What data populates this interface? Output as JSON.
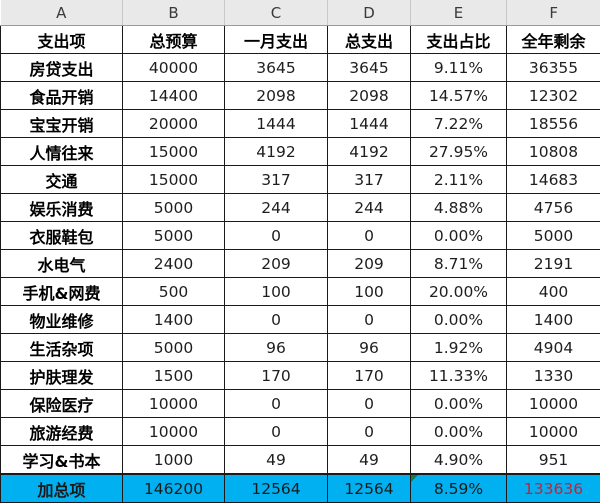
{
  "column_headers": [
    "A",
    "B",
    "C",
    "D",
    "E",
    "F"
  ],
  "header_row": [
    "支出项",
    "总预算",
    "一月支出",
    "总支出",
    "支出占比",
    "全年剩余"
  ],
  "rows": [
    [
      "房贷支出",
      "40000",
      "3645",
      "3645",
      "9.11%",
      "36355"
    ],
    [
      "食品开销",
      "14400",
      "2098",
      "2098",
      "14.57%",
      "12302"
    ],
    [
      "宝宝开销",
      "20000",
      "1444",
      "1444",
      "7.22%",
      "18556"
    ],
    [
      "人情往来",
      "15000",
      "4192",
      "4192",
      "27.95%",
      "10808"
    ],
    [
      "交通",
      "15000",
      "317",
      "317",
      "2.11%",
      "14683"
    ],
    [
      "娱乐消费",
      "5000",
      "244",
      "244",
      "4.88%",
      "4756"
    ],
    [
      "衣服鞋包",
      "5000",
      "0",
      "0",
      "0.00%",
      "5000"
    ],
    [
      "水电气",
      "2400",
      "209",
      "209",
      "8.71%",
      "2191"
    ],
    [
      "手机&网费",
      "500",
      "100",
      "100",
      "20.00%",
      "400"
    ],
    [
      "物业维修",
      "1400",
      "0",
      "0",
      "0.00%",
      "1400"
    ],
    [
      "生活杂项",
      "5000",
      "96",
      "96",
      "1.92%",
      "4904"
    ],
    [
      "护肤理发",
      "1500",
      "170",
      "170",
      "11.33%",
      "1330"
    ],
    [
      "保险医疗",
      "10000",
      "0",
      "0",
      "0.00%",
      "10000"
    ],
    [
      "旅游经费",
      "10000",
      "0",
      "0",
      "0.00%",
      "10000"
    ],
    [
      "学习&书本",
      "1000",
      "49",
      "49",
      "4.90%",
      "951"
    ]
  ],
  "total_row": [
    "加总项",
    "146200",
    "12564",
    "12564",
    "8.59%",
    "133636"
  ],
  "colors": {
    "total_row_fill": "#00b0f0",
    "remaining_total_text": "#c0243a",
    "column_header_fill": "#e9e9e9"
  }
}
